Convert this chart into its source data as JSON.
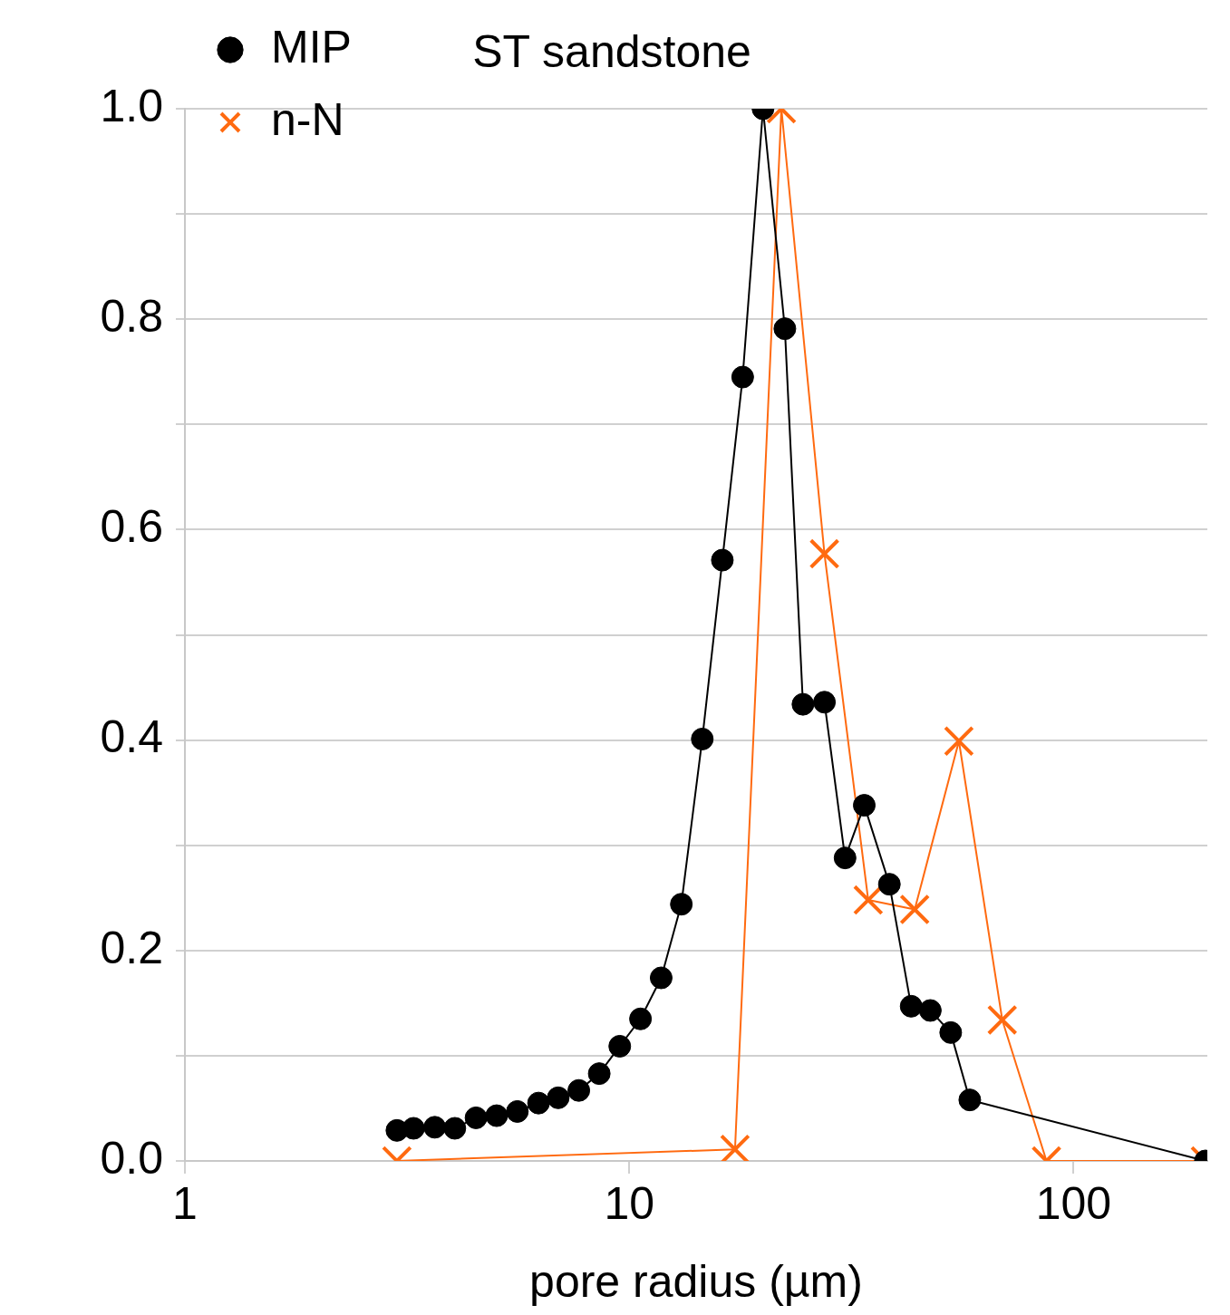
{
  "chart_data": {
    "type": "line",
    "title": "ST sandstone",
    "xlabel": "pore radius (µm)",
    "log": "x",
    "xlim": [
      1,
      200
    ],
    "xticks": [
      1,
      10,
      100
    ],
    "ylim": [
      0,
      1.0
    ],
    "yticks": [
      {
        "value": 0,
        "label": "0.0"
      },
      {
        "value": 0.1,
        "label": null
      },
      {
        "value": 0.2,
        "label": "0.2"
      },
      {
        "value": 0.3,
        "label": null
      },
      {
        "value": 0.4,
        "label": "0.4"
      },
      {
        "value": 0.5,
        "label": null
      },
      {
        "value": 0.6,
        "label": "0.6"
      },
      {
        "value": 0.7,
        "label": null
      },
      {
        "value": 0.8,
        "label": "0.8"
      },
      {
        "value": 0.9,
        "label": null
      },
      {
        "value": 1.0,
        "label": "1.0"
      }
    ],
    "grid": "y",
    "legend": "top left",
    "series": [
      {
        "name": "MIP",
        "color": "#000000",
        "marker": "circle",
        "x": [
          3.0,
          3.27,
          3.65,
          4.05,
          4.52,
          5.03,
          5.6,
          6.25,
          6.92,
          7.7,
          8.56,
          9.52,
          10.6,
          11.8,
          13.1,
          14.6,
          16.2,
          18.0,
          20.0,
          22.4,
          24.6,
          27.5,
          30.6,
          33.8,
          38.5,
          43.1,
          47.6,
          52.9,
          58.4,
          198
        ],
        "values": [
          0.029,
          0.031,
          0.032,
          0.031,
          0.041,
          0.043,
          0.047,
          0.055,
          0.06,
          0.067,
          0.083,
          0.109,
          0.135,
          0.174,
          0.244,
          0.401,
          0.571,
          0.745,
          1.0,
          0.791,
          0.434,
          0.436,
          0.288,
          0.338,
          0.263,
          0.147,
          0.143,
          0.122,
          0.058,
          0
        ]
      },
      {
        "name": "n-N",
        "color": "#ff6a10",
        "marker": "cross",
        "x": [
          3.0,
          17.3,
          22.0,
          27.5,
          34.5,
          43.9,
          55.2,
          69.1,
          86.9,
          198
        ],
        "values": [
          0,
          0.011,
          1.0,
          0.577,
          0.248,
          0.239,
          0.399,
          0.134,
          0,
          0
        ]
      }
    ]
  }
}
